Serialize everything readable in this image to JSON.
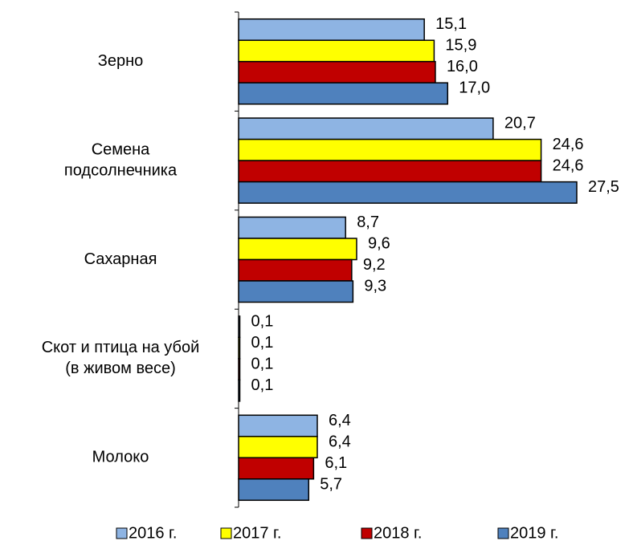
{
  "chart_data": {
    "type": "barh",
    "categories": [
      [
        "Зерно"
      ],
      [
        "Семена",
        "подсолнечника"
      ],
      [
        "Сахарная"
      ],
      [
        "Скот и птица на убой",
        "(в живом весе)"
      ],
      [
        "Молоко"
      ]
    ],
    "series": [
      {
        "name": "2016 г.",
        "color": "#8eb4e3",
        "values": [
          15.1,
          20.7,
          8.7,
          0.1,
          6.4
        ],
        "value_labels": [
          "15,1",
          "20,7",
          "8,7",
          "0,1",
          "6,4"
        ]
      },
      {
        "name": "2017 г.",
        "color": "#ffff00",
        "values": [
          15.9,
          24.6,
          9.6,
          0.1,
          6.4
        ],
        "value_labels": [
          "15,9",
          "24,6",
          "9,6",
          "0,1",
          "6,4"
        ]
      },
      {
        "name": "2018 г.",
        "color": "#c00000",
        "values": [
          16.0,
          24.6,
          9.2,
          0.1,
          6.1
        ],
        "value_labels": [
          "16,0",
          "24,6",
          "9,2",
          "0,1",
          "6,1"
        ]
      },
      {
        "name": "2019 г.",
        "color": "#4f81bd",
        "values": [
          17.0,
          27.5,
          9.3,
          0.1,
          5.7
        ],
        "value_labels": [
          "17,0",
          "27,5",
          "9,3",
          "0,1",
          "5,7"
        ]
      }
    ],
    "xlim": [
      0,
      27.5
    ],
    "legend": "bottom"
  }
}
